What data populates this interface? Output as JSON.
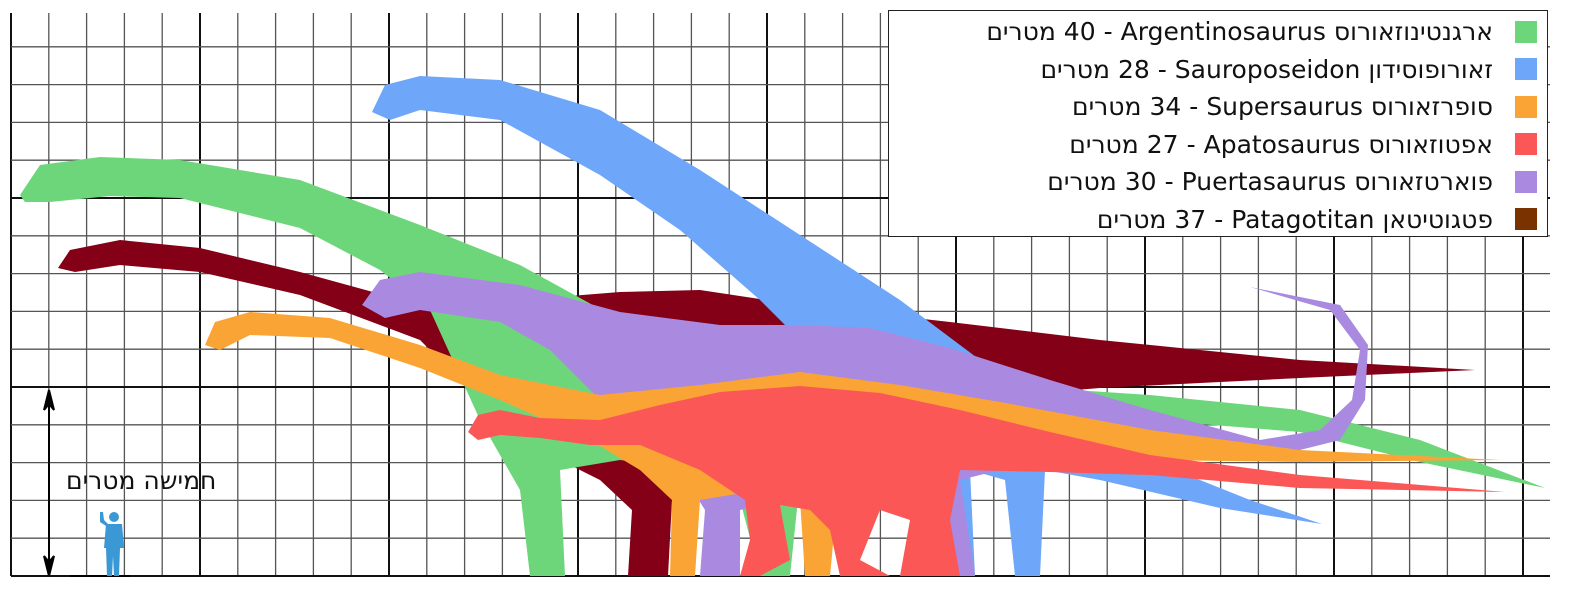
{
  "unit": "מטרים",
  "scale_label": "חמישה מטרים",
  "legend": [
    {
      "hebrew": "ארגנטינוזאורוס",
      "latin": "Argentinosaurus",
      "length": "40",
      "color": "#6ed67a"
    },
    {
      "hebrew": "זאורופוסידון",
      "latin": "Sauroposeidon",
      "length": "28",
      "color": "#6ea6fa"
    },
    {
      "hebrew": "סופרזאורוס",
      "latin": "Supersaurus",
      "length": "34",
      "color": "#fba436"
    },
    {
      "hebrew": "אפטוזאורוס",
      "latin": "Apatosaurus",
      "length": "27",
      "color": "#fb5756"
    },
    {
      "hebrew": "פוארטזאורוס",
      "latin": "Puertasaurus",
      "length": "30",
      "color": "#a98ae0"
    },
    {
      "hebrew": "פטגוטיטאן",
      "latin": "Patagotitan",
      "length": "37",
      "color": "#7a3300"
    }
  ],
  "silhouette_colors": {
    "patagotitan": "#830016",
    "human": "#3a98d4"
  }
}
